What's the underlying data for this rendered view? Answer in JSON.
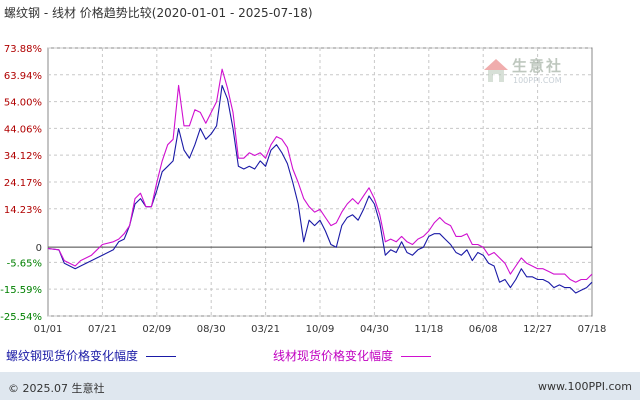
{
  "title": "螺纹钢 - 线材 价格趋势比较(2020-01-01 - 2025-07-18)",
  "legend": {
    "series_a": "螺纹钢现货价格变化幅度",
    "series_b": "线材现货价格变化幅度"
  },
  "footer": {
    "left": "© 2025.07 生意社",
    "right": "www.100PPI.com"
  },
  "watermark": {
    "brand": "生意社",
    "url": "100PPI.COM"
  },
  "colors": {
    "series_a": "#1a1aa6",
    "series_b": "#d010d0",
    "grid": "#c8c8c8",
    "positive_tick": "#b00000",
    "negative_tick": "#008000"
  },
  "chart_data": {
    "type": "line",
    "title": "螺纹钢 - 线材 价格趋势比较(2020-01-01 - 2025-07-18)",
    "xlabel": "",
    "ylabel": "",
    "x_ticks": [
      "01/01",
      "07/21",
      "02/09",
      "08/30",
      "03/21",
      "10/09",
      "04/30",
      "11/18",
      "06/08",
      "12/27",
      "07/18"
    ],
    "y_ticks": [
      "73.88%",
      "63.94%",
      "54.00%",
      "44.06%",
      "34.12%",
      "24.17%",
      "14.23%",
      "0",
      "-5.65%",
      "-15.59%",
      "-25.54%"
    ],
    "ylim": [
      -25.54,
      73.88
    ],
    "grid": true,
    "legend_position": "bottom",
    "x_range": [
      0,
      100
    ],
    "series": [
      {
        "name": "螺纹钢现货价格变化幅度",
        "color": "#1a1aa6",
        "points": [
          [
            0,
            -0.5
          ],
          [
            2,
            -1
          ],
          [
            3,
            -6
          ],
          [
            5,
            -8
          ],
          [
            6,
            -7
          ],
          [
            8,
            -5
          ],
          [
            9,
            -4
          ],
          [
            10,
            -3
          ],
          [
            12,
            -1
          ],
          [
            13,
            2
          ],
          [
            14,
            3
          ],
          [
            15,
            8
          ],
          [
            16,
            16
          ],
          [
            17,
            18
          ],
          [
            18,
            15
          ],
          [
            19,
            15
          ],
          [
            20,
            21
          ],
          [
            21,
            28
          ],
          [
            22,
            30
          ],
          [
            23,
            32
          ],
          [
            24,
            44
          ],
          [
            25,
            36
          ],
          [
            26,
            33
          ],
          [
            27,
            38
          ],
          [
            28,
            44
          ],
          [
            29,
            40
          ],
          [
            30,
            42
          ],
          [
            31,
            45
          ],
          [
            32,
            60
          ],
          [
            33,
            55
          ],
          [
            34,
            44
          ],
          [
            35,
            30
          ],
          [
            36,
            29
          ],
          [
            37,
            30
          ],
          [
            38,
            29
          ],
          [
            39,
            32
          ],
          [
            40,
            30
          ],
          [
            41,
            36
          ],
          [
            42,
            38
          ],
          [
            43,
            35
          ],
          [
            44,
            31
          ],
          [
            45,
            24
          ],
          [
            46,
            16
          ],
          [
            47,
            2
          ],
          [
            48,
            10
          ],
          [
            49,
            8
          ],
          [
            50,
            10
          ],
          [
            51,
            6
          ],
          [
            52,
            1
          ],
          [
            53,
            0
          ],
          [
            54,
            8
          ],
          [
            55,
            11
          ],
          [
            56,
            12
          ],
          [
            57,
            10
          ],
          [
            58,
            14
          ],
          [
            59,
            19
          ],
          [
            60,
            16
          ],
          [
            61,
            9
          ],
          [
            62,
            -3
          ],
          [
            63,
            -1
          ],
          [
            64,
            -2
          ],
          [
            65,
            2
          ],
          [
            66,
            -2
          ],
          [
            67,
            -3
          ],
          [
            68,
            -1
          ],
          [
            69,
            0
          ],
          [
            70,
            4
          ],
          [
            71,
            5
          ],
          [
            72,
            5
          ],
          [
            73,
            3
          ],
          [
            74,
            1
          ],
          [
            75,
            -2
          ],
          [
            76,
            -3
          ],
          [
            77,
            -1
          ],
          [
            78,
            -5
          ],
          [
            79,
            -2
          ],
          [
            80,
            -3
          ],
          [
            81,
            -6
          ],
          [
            82,
            -7
          ],
          [
            83,
            -13
          ],
          [
            84,
            -12
          ],
          [
            85,
            -15
          ],
          [
            86,
            -12
          ],
          [
            87,
            -8
          ],
          [
            88,
            -11
          ],
          [
            89,
            -11
          ],
          [
            90,
            -12
          ],
          [
            91,
            -12
          ],
          [
            92,
            -13
          ],
          [
            93,
            -15
          ],
          [
            94,
            -14
          ],
          [
            95,
            -15
          ],
          [
            96,
            -15
          ],
          [
            97,
            -17
          ],
          [
            98,
            -16
          ],
          [
            99,
            -15
          ],
          [
            100,
            -13
          ]
        ]
      },
      {
        "name": "线材现货价格变化幅度",
        "color": "#d010d0",
        "points": [
          [
            0,
            -0.5
          ],
          [
            2,
            -1
          ],
          [
            3,
            -5
          ],
          [
            5,
            -7
          ],
          [
            6,
            -5
          ],
          [
            8,
            -3
          ],
          [
            9,
            -1
          ],
          [
            10,
            1
          ],
          [
            12,
            2
          ],
          [
            13,
            3
          ],
          [
            14,
            5
          ],
          [
            15,
            8
          ],
          [
            16,
            18
          ],
          [
            17,
            20
          ],
          [
            18,
            15
          ],
          [
            19,
            15
          ],
          [
            20,
            24
          ],
          [
            21,
            32
          ],
          [
            22,
            38
          ],
          [
            23,
            40
          ],
          [
            24,
            60
          ],
          [
            25,
            45
          ],
          [
            26,
            45
          ],
          [
            27,
            51
          ],
          [
            28,
            50
          ],
          [
            29,
            46
          ],
          [
            30,
            50
          ],
          [
            31,
            54
          ],
          [
            32,
            66
          ],
          [
            33,
            59
          ],
          [
            34,
            50
          ],
          [
            35,
            33
          ],
          [
            36,
            33
          ],
          [
            37,
            35
          ],
          [
            38,
            34
          ],
          [
            39,
            35
          ],
          [
            40,
            33
          ],
          [
            41,
            38
          ],
          [
            42,
            41
          ],
          [
            43,
            40
          ],
          [
            44,
            37
          ],
          [
            45,
            29
          ],
          [
            46,
            24
          ],
          [
            47,
            18
          ],
          [
            48,
            15
          ],
          [
            49,
            13
          ],
          [
            50,
            14
          ],
          [
            51,
            11
          ],
          [
            52,
            8
          ],
          [
            53,
            9
          ],
          [
            54,
            13
          ],
          [
            55,
            16
          ],
          [
            56,
            18
          ],
          [
            57,
            16
          ],
          [
            58,
            19
          ],
          [
            59,
            22
          ],
          [
            60,
            18
          ],
          [
            61,
            12
          ],
          [
            62,
            2
          ],
          [
            63,
            3
          ],
          [
            64,
            2
          ],
          [
            65,
            4
          ],
          [
            66,
            2
          ],
          [
            67,
            1
          ],
          [
            68,
            3
          ],
          [
            69,
            4
          ],
          [
            70,
            6
          ],
          [
            71,
            9
          ],
          [
            72,
            11
          ],
          [
            73,
            9
          ],
          [
            74,
            8
          ],
          [
            75,
            4
          ],
          [
            76,
            4
          ],
          [
            77,
            5
          ],
          [
            78,
            1
          ],
          [
            79,
            1
          ],
          [
            80,
            0
          ],
          [
            81,
            -3
          ],
          [
            82,
            -2
          ],
          [
            83,
            -4
          ],
          [
            84,
            -6
          ],
          [
            85,
            -10
          ],
          [
            86,
            -7
          ],
          [
            87,
            -4
          ],
          [
            88,
            -6
          ],
          [
            89,
            -7
          ],
          [
            90,
            -8
          ],
          [
            91,
            -8
          ],
          [
            92,
            -9
          ],
          [
            93,
            -10
          ],
          [
            94,
            -10
          ],
          [
            95,
            -10
          ],
          [
            96,
            -12
          ],
          [
            97,
            -13
          ],
          [
            98,
            -12
          ],
          [
            99,
            -12
          ],
          [
            100,
            -10
          ]
        ]
      }
    ]
  }
}
